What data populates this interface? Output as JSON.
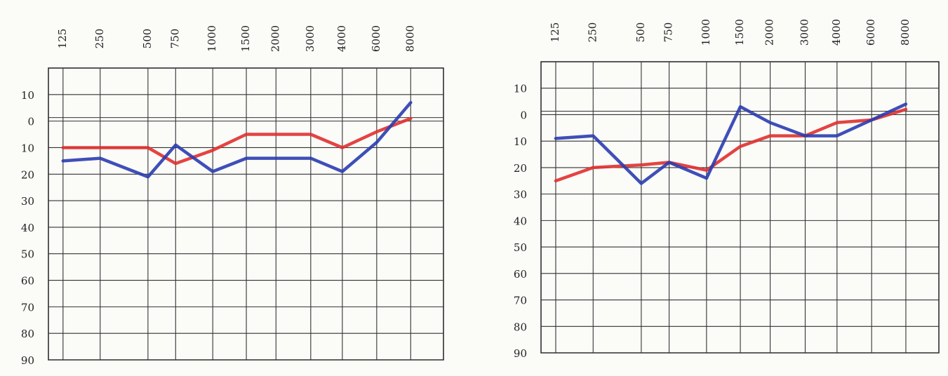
{
  "chart_data": [
    {
      "type": "line",
      "categories": [
        "125",
        "250",
        "500",
        "750",
        "1000",
        "1500",
        "2000",
        "3000",
        "4000",
        "6000",
        "8000"
      ],
      "series": [
        {
          "color": "#e0302e",
          "values": [
            10,
            10,
            10,
            16,
            11,
            5,
            5,
            5,
            10,
            4,
            -1
          ]
        },
        {
          "color": "#2a3cb0",
          "values": [
            15,
            14,
            21,
            9,
            19,
            14,
            14,
            14,
            19,
            8,
            -7
          ]
        }
      ],
      "ylim": [
        -20,
        90
      ],
      "yticks": [
        {
          "value": -10,
          "label": "10"
        },
        0,
        10,
        20,
        30,
        40,
        50,
        60,
        70,
        80,
        90
      ],
      "grid": true
    },
    {
      "type": "line",
      "categories": [
        "125",
        "250",
        "500",
        "750",
        "1000",
        "1500",
        "2000",
        "3000",
        "4000",
        "6000",
        "8000"
      ],
      "series": [
        {
          "color": "#e0302e",
          "values": [
            25,
            20,
            19,
            18,
            21,
            12,
            8,
            8,
            3,
            2,
            -2
          ]
        },
        {
          "color": "#2a3cb0",
          "values": [
            9,
            8,
            26,
            18,
            24,
            -3,
            3,
            8,
            8,
            2,
            -4
          ]
        }
      ],
      "ylim": [
        -20,
        90
      ],
      "yticks": [
        {
          "value": -10,
          "label": "10"
        },
        0,
        10,
        20,
        30,
        40,
        50,
        60,
        70,
        80,
        90
      ],
      "grid": true
    }
  ]
}
